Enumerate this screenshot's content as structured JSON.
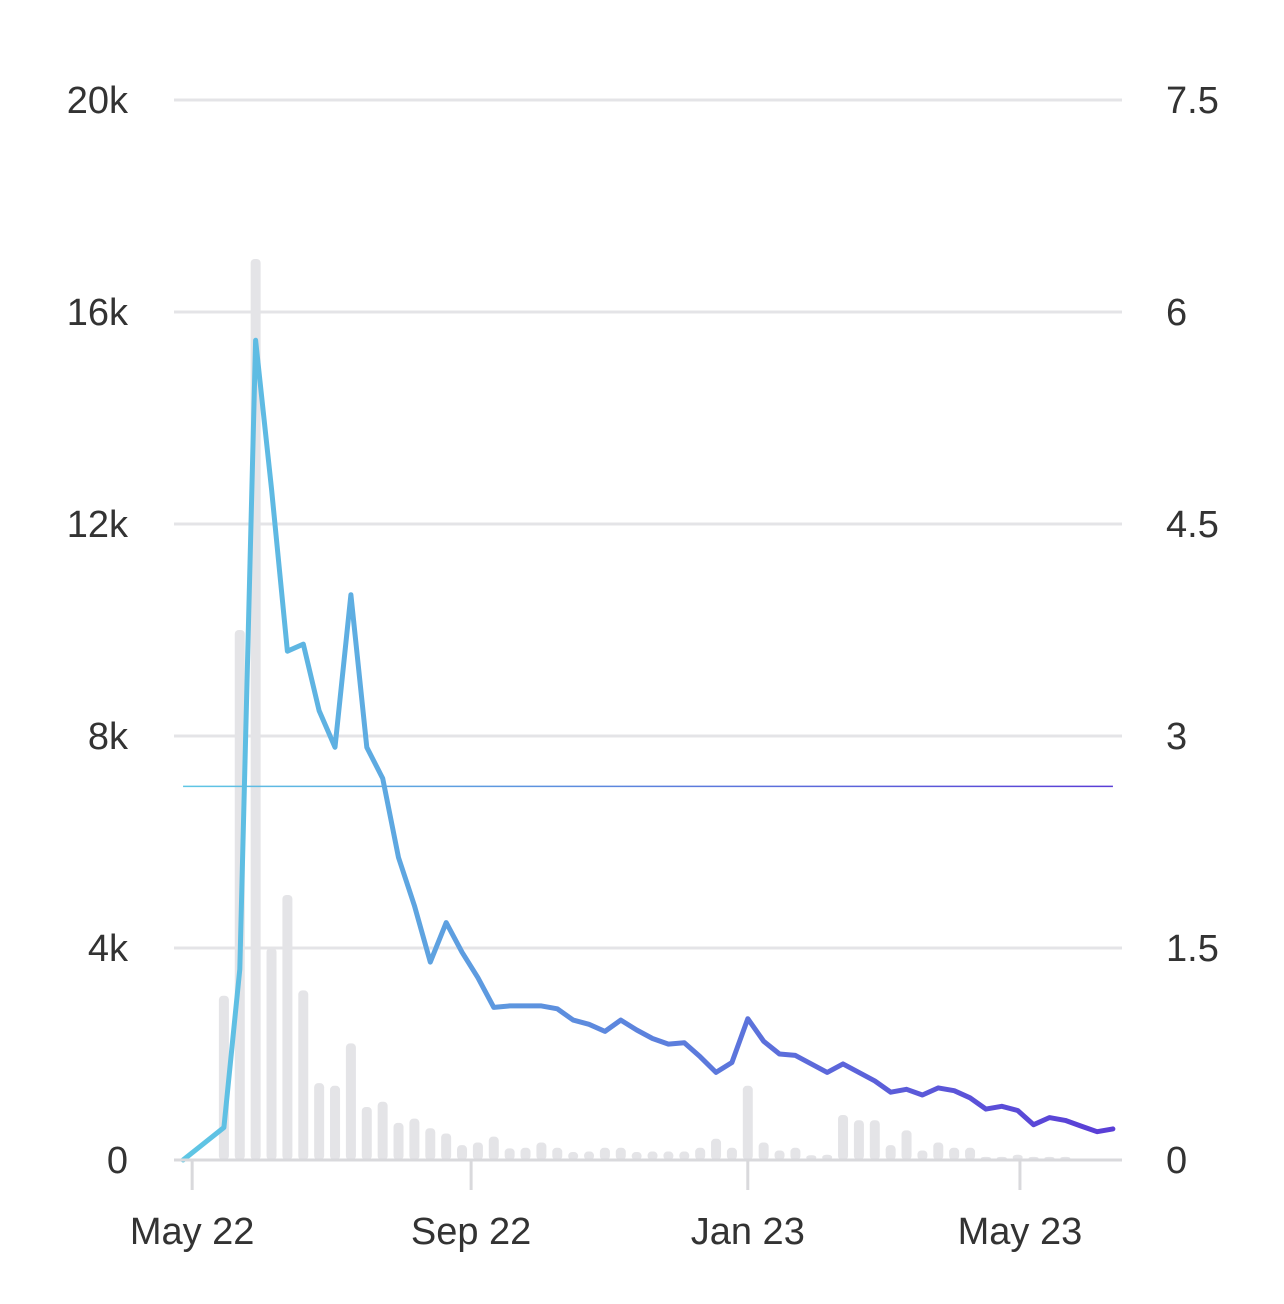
{
  "chart_data": {
    "type": "bar+line",
    "title": "",
    "xlabel": "",
    "ylabel_left": "",
    "ylabel_right": "",
    "grid": true,
    "legend": "none",
    "left_axis": {
      "ylim": [
        0,
        20000
      ],
      "ticks": [
        0,
        4000,
        8000,
        12000,
        16000,
        20000
      ],
      "tick_labels": [
        "0",
        "4k",
        "8k",
        "12k",
        "16k",
        "20k"
      ]
    },
    "right_axis": {
      "ylim": [
        0,
        7.5
      ],
      "ticks": [
        0,
        1.5,
        3,
        4.5,
        6,
        7.5
      ],
      "tick_labels": [
        "0",
        "1.5",
        "3",
        "4.5",
        "6",
        "7.5"
      ]
    },
    "x_axis": {
      "range": [
        "2022-04-23",
        "2023-06-15"
      ],
      "ticks": [
        "2022-05-01",
        "2022-09-01",
        "2023-01-01",
        "2023-05-01"
      ],
      "tick_labels": [
        "May 22",
        "Sep 22",
        "Jan 23",
        "May 23"
      ]
    },
    "bar_series": {
      "axis": "left",
      "color": "#e4e4e7",
      "points": [
        [
          "2022-05-15",
          3100
        ],
        [
          "2022-05-22",
          10000
        ],
        [
          "2022-05-29",
          17000
        ],
        [
          "2022-06-05",
          4000
        ],
        [
          "2022-06-12",
          5000
        ],
        [
          "2022-06-19",
          3200
        ],
        [
          "2022-06-26",
          1450
        ],
        [
          "2022-07-03",
          1400
        ],
        [
          "2022-07-10",
          2200
        ],
        [
          "2022-07-17",
          1000
        ],
        [
          "2022-07-24",
          1100
        ],
        [
          "2022-07-31",
          700
        ],
        [
          "2022-08-07",
          780
        ],
        [
          "2022-08-14",
          600
        ],
        [
          "2022-08-21",
          500
        ],
        [
          "2022-08-28",
          280
        ],
        [
          "2022-09-04",
          330
        ],
        [
          "2022-09-11",
          440
        ],
        [
          "2022-09-18",
          220
        ],
        [
          "2022-09-25",
          230
        ],
        [
          "2022-10-02",
          330
        ],
        [
          "2022-10-09",
          230
        ],
        [
          "2022-10-16",
          150
        ],
        [
          "2022-10-23",
          160
        ],
        [
          "2022-10-30",
          230
        ],
        [
          "2022-11-06",
          230
        ],
        [
          "2022-11-13",
          150
        ],
        [
          "2022-11-20",
          160
        ],
        [
          "2022-11-27",
          160
        ],
        [
          "2022-12-04",
          160
        ],
        [
          "2022-12-11",
          230
        ],
        [
          "2022-12-18",
          400
        ],
        [
          "2022-12-25",
          230
        ],
        [
          "2023-01-01",
          1400
        ],
        [
          "2023-01-08",
          330
        ],
        [
          "2023-01-15",
          180
        ],
        [
          "2023-01-22",
          230
        ],
        [
          "2023-01-29",
          90
        ],
        [
          "2023-02-05",
          100
        ],
        [
          "2023-02-12",
          850
        ],
        [
          "2023-02-19",
          750
        ],
        [
          "2023-02-26",
          750
        ],
        [
          "2023-03-05",
          280
        ],
        [
          "2023-03-12",
          560
        ],
        [
          "2023-03-19",
          180
        ],
        [
          "2023-03-26",
          330
        ],
        [
          "2023-04-02",
          230
        ],
        [
          "2023-04-09",
          230
        ],
        [
          "2023-04-16",
          60
        ],
        [
          "2023-04-23",
          60
        ],
        [
          "2023-04-30",
          100
        ],
        [
          "2023-05-07",
          60
        ],
        [
          "2023-05-14",
          60
        ],
        [
          "2023-05-21",
          60
        ]
      ]
    },
    "line_series": {
      "axis": "right",
      "gradient": [
        "#5fc6e4",
        "#5a3fd6"
      ],
      "points": [
        [
          "2022-04-27",
          0.0
        ],
        [
          "2022-05-15",
          0.23
        ],
        [
          "2022-05-22",
          1.35
        ],
        [
          "2022-05-29",
          5.8
        ],
        [
          "2022-06-05",
          4.75
        ],
        [
          "2022-06-12",
          3.6
        ],
        [
          "2022-06-19",
          3.65
        ],
        [
          "2022-06-26",
          3.18
        ],
        [
          "2022-07-03",
          2.92
        ],
        [
          "2022-07-10",
          4.0
        ],
        [
          "2022-07-17",
          2.92
        ],
        [
          "2022-07-24",
          2.7
        ],
        [
          "2022-07-31",
          2.14
        ],
        [
          "2022-08-07",
          1.8
        ],
        [
          "2022-08-14",
          1.4
        ],
        [
          "2022-08-21",
          1.68
        ],
        [
          "2022-08-28",
          1.47
        ],
        [
          "2022-09-04",
          1.29
        ],
        [
          "2022-09-11",
          1.08
        ],
        [
          "2022-09-18",
          1.09
        ],
        [
          "2022-09-25",
          1.09
        ],
        [
          "2022-10-02",
          1.09
        ],
        [
          "2022-10-09",
          1.07
        ],
        [
          "2022-10-16",
          0.99
        ],
        [
          "2022-10-23",
          0.96
        ],
        [
          "2022-10-30",
          0.91
        ],
        [
          "2022-11-06",
          0.99
        ],
        [
          "2022-11-13",
          0.92
        ],
        [
          "2022-11-20",
          0.86
        ],
        [
          "2022-11-27",
          0.82
        ],
        [
          "2022-12-04",
          0.83
        ],
        [
          "2022-12-11",
          0.73
        ],
        [
          "2022-12-18",
          0.62
        ],
        [
          "2022-12-25",
          0.69
        ],
        [
          "2023-01-01",
          1.0
        ],
        [
          "2023-01-08",
          0.84
        ],
        [
          "2023-01-15",
          0.75
        ],
        [
          "2023-01-22",
          0.74
        ],
        [
          "2023-01-29",
          0.68
        ],
        [
          "2023-02-05",
          0.62
        ],
        [
          "2023-02-12",
          0.68
        ],
        [
          "2023-02-19",
          0.62
        ],
        [
          "2023-02-26",
          0.56
        ],
        [
          "2023-03-05",
          0.48
        ],
        [
          "2023-03-12",
          0.5
        ],
        [
          "2023-03-19",
          0.46
        ],
        [
          "2023-03-26",
          0.51
        ],
        [
          "2023-04-02",
          0.49
        ],
        [
          "2023-04-09",
          0.44
        ],
        [
          "2023-04-16",
          0.36
        ],
        [
          "2023-04-23",
          0.38
        ],
        [
          "2023-04-30",
          0.35
        ],
        [
          "2023-05-07",
          0.25
        ],
        [
          "2023-05-14",
          0.3
        ],
        [
          "2023-05-21",
          0.28
        ],
        [
          "2023-05-28",
          0.24
        ],
        [
          "2023-06-04",
          0.2
        ],
        [
          "2023-06-11",
          0.22
        ]
      ]
    },
    "reference_line": {
      "axis": "left",
      "value": 7050,
      "from": "2022-04-27",
      "to": "2023-06-11"
    }
  }
}
